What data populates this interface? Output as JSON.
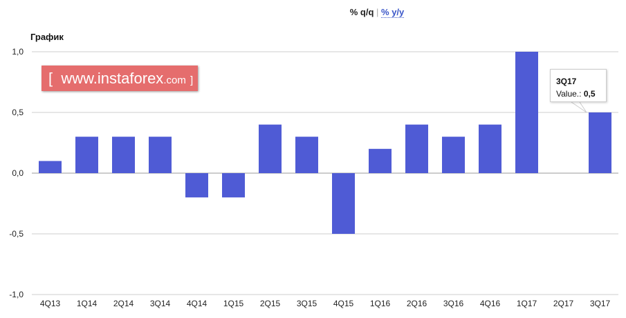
{
  "tabs": {
    "active": "% q/q",
    "separator": "|",
    "other": "% y/y"
  },
  "chart_data": {
    "type": "bar",
    "title": "График",
    "categories": [
      "4Q13",
      "1Q14",
      "2Q14",
      "3Q14",
      "4Q14",
      "1Q15",
      "2Q15",
      "3Q15",
      "4Q15",
      "1Q16",
      "2Q16",
      "3Q16",
      "4Q16",
      "1Q17",
      "2Q17",
      "3Q17"
    ],
    "values": [
      0.1,
      0.3,
      0.3,
      0.3,
      -0.2,
      -0.2,
      0.4,
      0.3,
      -0.5,
      0.2,
      0.4,
      0.3,
      0.4,
      1.0,
      0,
      0.5
    ],
    "yticks": [
      "1,0",
      "0,5",
      "0,0",
      "-0,5",
      "-1,0"
    ],
    "ytick_values": [
      1,
      0.5,
      0,
      -0.5,
      -1
    ],
    "ylim": [
      -1,
      1
    ],
    "grid": true,
    "bar_color": "#4f5bd5",
    "tooltip": {
      "title": "3Q17",
      "label": "Value.:",
      "value": "0,5"
    }
  },
  "watermark": {
    "bracket_open": "[",
    "main": "www.instaforex",
    "suffix": ".com",
    "bracket_close": "]"
  }
}
